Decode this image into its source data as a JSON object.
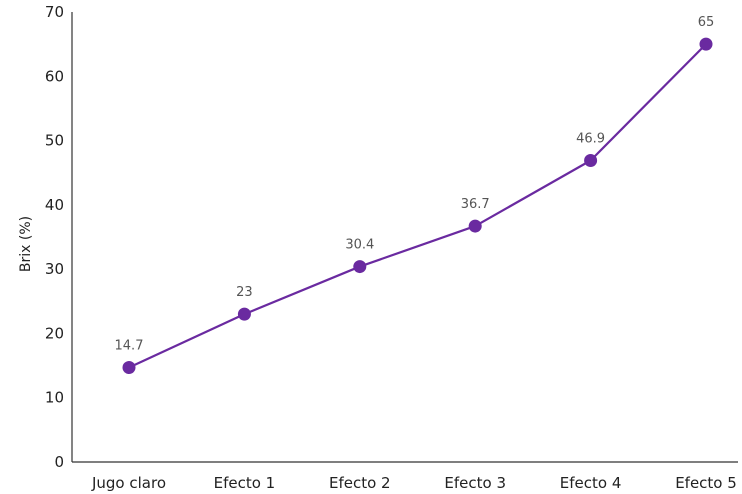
{
  "chart_data": {
    "type": "line",
    "title": "",
    "xlabel": "",
    "ylabel": "Brix (%)",
    "categories": [
      "Jugo claro",
      "Efecto 1",
      "Efecto 2",
      "Efecto 3",
      "Efecto 4",
      "Efecto 5"
    ],
    "series": [
      {
        "values": [
          14.7,
          23,
          30.4,
          36.7,
          46.9,
          65
        ]
      }
    ],
    "data_labels": [
      "14.7",
      "23",
      "30.4",
      "36.7",
      "46.9",
      "65"
    ],
    "yticks": [
      0,
      10,
      20,
      30,
      40,
      50,
      60,
      70
    ],
    "ylim": [
      0,
      70
    ],
    "grid": false,
    "legend": "none",
    "colors": {
      "series": "#6a2aa0",
      "axis": "#333333",
      "label": "#555555"
    }
  }
}
